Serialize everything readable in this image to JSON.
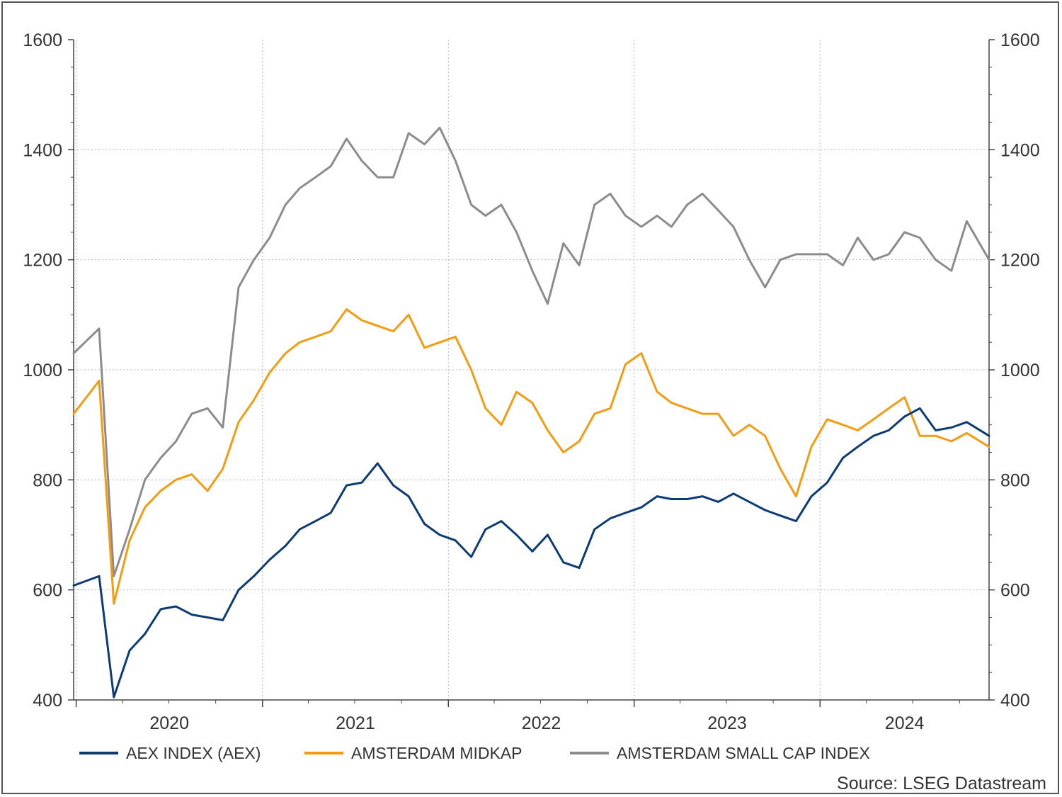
{
  "chart_data": {
    "type": "line",
    "title": "",
    "xlabel": "",
    "ylabel": "",
    "x_range": [
      "2019-12-27",
      "2024-11-28"
    ],
    "ylim": [
      400,
      1600
    ],
    "y_ticks": [
      "400",
      "600",
      "800",
      "1000",
      "1200",
      "1400",
      "1600"
    ],
    "x_ticks": [
      "2020",
      "2021",
      "2022",
      "2023",
      "2024"
    ],
    "grid": true,
    "secondary_y_axis": true,
    "legend_position": "bottom",
    "source": "Source: LSEG Datastream",
    "x": [
      "2020-01",
      "2020-02",
      "2020-03",
      "2020-04",
      "2020-05",
      "2020-06",
      "2020-07",
      "2020-08",
      "2020-09",
      "2020-10",
      "2020-11",
      "2020-12",
      "2021-01",
      "2021-02",
      "2021-03",
      "2021-04",
      "2021-05",
      "2021-06",
      "2021-07",
      "2021-08",
      "2021-09",
      "2021-10",
      "2021-11",
      "2021-12",
      "2022-01",
      "2022-02",
      "2022-03",
      "2022-04",
      "2022-05",
      "2022-06",
      "2022-07",
      "2022-08",
      "2022-09",
      "2022-10",
      "2022-11",
      "2022-12",
      "2023-01",
      "2023-02",
      "2023-03",
      "2023-04",
      "2023-05",
      "2023-06",
      "2023-07",
      "2023-08",
      "2023-09",
      "2023-10",
      "2023-11",
      "2023-12",
      "2024-01",
      "2024-02",
      "2024-03",
      "2024-04",
      "2024-05",
      "2024-06",
      "2024-07",
      "2024-08",
      "2024-09",
      "2024-10",
      "2024-11"
    ],
    "series": [
      {
        "name": "AEX INDEX (AEX)",
        "color": "#0d3b73",
        "values": [
          608,
          625,
          405,
          490,
          520,
          565,
          570,
          555,
          550,
          545,
          600,
          625,
          655,
          680,
          710,
          725,
          740,
          790,
          795,
          830,
          790,
          770,
          720,
          700,
          690,
          660,
          710,
          725,
          700,
          670,
          700,
          650,
          640,
          710,
          730,
          740,
          750,
          770,
          765,
          765,
          770,
          760,
          775,
          760,
          745,
          735,
          725,
          770,
          795,
          840,
          860,
          880,
          890,
          915,
          930,
          890,
          895,
          905,
          880
        ]
      },
      {
        "name": "AMSTERDAM MIDKAP",
        "color": "#f39c12",
        "values": [
          920,
          980,
          575,
          690,
          750,
          780,
          800,
          810,
          780,
          820,
          905,
          945,
          995,
          1030,
          1050,
          1060,
          1070,
          1110,
          1090,
          1080,
          1070,
          1100,
          1040,
          1050,
          1060,
          1000,
          930,
          900,
          960,
          940,
          890,
          850,
          870,
          920,
          930,
          1010,
          1030,
          960,
          940,
          930,
          920,
          920,
          880,
          900,
          880,
          820,
          770,
          860,
          910,
          900,
          890,
          910,
          930,
          950,
          880,
          880,
          870,
          885,
          860
        ]
      },
      {
        "name": "AMSTERDAM SMALL CAP INDEX",
        "color": "#8c8c8c",
        "values": [
          1030,
          1075,
          625,
          710,
          800,
          840,
          870,
          920,
          930,
          895,
          1150,
          1200,
          1240,
          1300,
          1330,
          1350,
          1370,
          1420,
          1380,
          1350,
          1350,
          1430,
          1410,
          1440,
          1380,
          1300,
          1280,
          1300,
          1250,
          1180,
          1120,
          1230,
          1190,
          1300,
          1320,
          1280,
          1260,
          1280,
          1260,
          1300,
          1320,
          1290,
          1260,
          1200,
          1150,
          1200,
          1210,
          1210,
          1210,
          1190,
          1240,
          1200,
          1210,
          1250,
          1240,
          1200,
          1180,
          1270,
          1200
        ]
      }
    ]
  }
}
